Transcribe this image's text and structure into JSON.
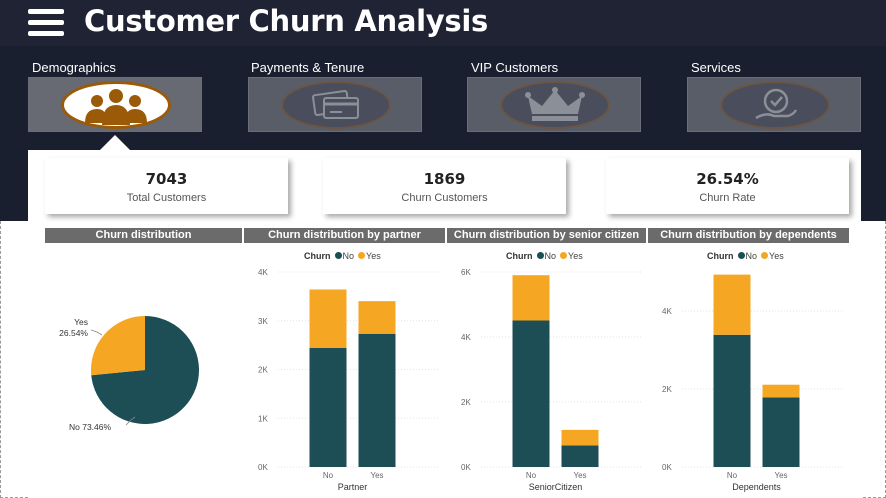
{
  "header": {
    "title": "Customer Churn Analysis",
    "menu_icon": "hamburger-menu-icon"
  },
  "nav": [
    {
      "label": "Demographics",
      "icon": "people-icon",
      "active": true
    },
    {
      "label": "Payments & Tenure",
      "icon": "credit-cards-icon",
      "active": false
    },
    {
      "label": "VIP Customers",
      "icon": "crown-icon",
      "active": false
    },
    {
      "label": "Services",
      "icon": "service-badge-icon",
      "active": false
    }
  ],
  "kpis": [
    {
      "value": "7043",
      "label": "Total Customers"
    },
    {
      "value": "1869",
      "label": "Churn Customers"
    },
    {
      "value": "26.54%",
      "label": "Churn Rate"
    }
  ],
  "colors": {
    "no": "#1d4e55",
    "yes": "#f5a623",
    "header": "#1f2333",
    "title_bar": "#6b6b6b"
  },
  "legend": {
    "title": "Churn",
    "no": "No",
    "yes": "Yes"
  },
  "chart_data": [
    {
      "type": "pie",
      "title": "Churn distribution",
      "slices": [
        {
          "label": "Yes",
          "value": 26.54,
          "display": "26.54%"
        },
        {
          "label": "No",
          "value": 73.46,
          "display": "73.46%"
        }
      ],
      "labels": {
        "yes": "Yes",
        "yes_pct": "26.54%",
        "no": "No 73.46%"
      }
    },
    {
      "type": "bar",
      "stacked": true,
      "title": "Churn distribution by partner",
      "categories": [
        "No",
        "Yes"
      ],
      "series": [
        {
          "name": "No",
          "values": [
            2441,
            2733
          ]
        },
        {
          "name": "Yes",
          "values": [
            1200,
            669
          ]
        }
      ],
      "xlabel": "Partner",
      "ylim": [
        0,
        4000
      ],
      "yticks": [
        "0K",
        "1K",
        "2K",
        "3K",
        "4K"
      ],
      "grid": true
    },
    {
      "type": "bar",
      "stacked": true,
      "title": "Churn distribution by senior citizen",
      "categories": [
        "No",
        "Yes"
      ],
      "series": [
        {
          "name": "No",
          "values": [
            4508,
            666
          ]
        },
        {
          "name": "Yes",
          "values": [
            1393,
            476
          ]
        }
      ],
      "xlabel": "SeniorCitizen",
      "ylim": [
        0,
        6000
      ],
      "yticks": [
        "0K",
        "2K",
        "4K",
        "6K"
      ],
      "grid": true
    },
    {
      "type": "bar",
      "stacked": true,
      "title": "Churn distribution by dependents",
      "categories": [
        "No",
        "Yes"
      ],
      "series": [
        {
          "name": "No",
          "values": [
            3390,
            1784
          ]
        },
        {
          "name": "Yes",
          "values": [
            1543,
            326
          ]
        }
      ],
      "xlabel": "Dependents",
      "ylim": [
        0,
        5000
      ],
      "yticks": [
        "0K",
        "2K",
        "4K"
      ],
      "ytick_values": [
        0,
        2000,
        4000
      ],
      "grid": true
    }
  ]
}
